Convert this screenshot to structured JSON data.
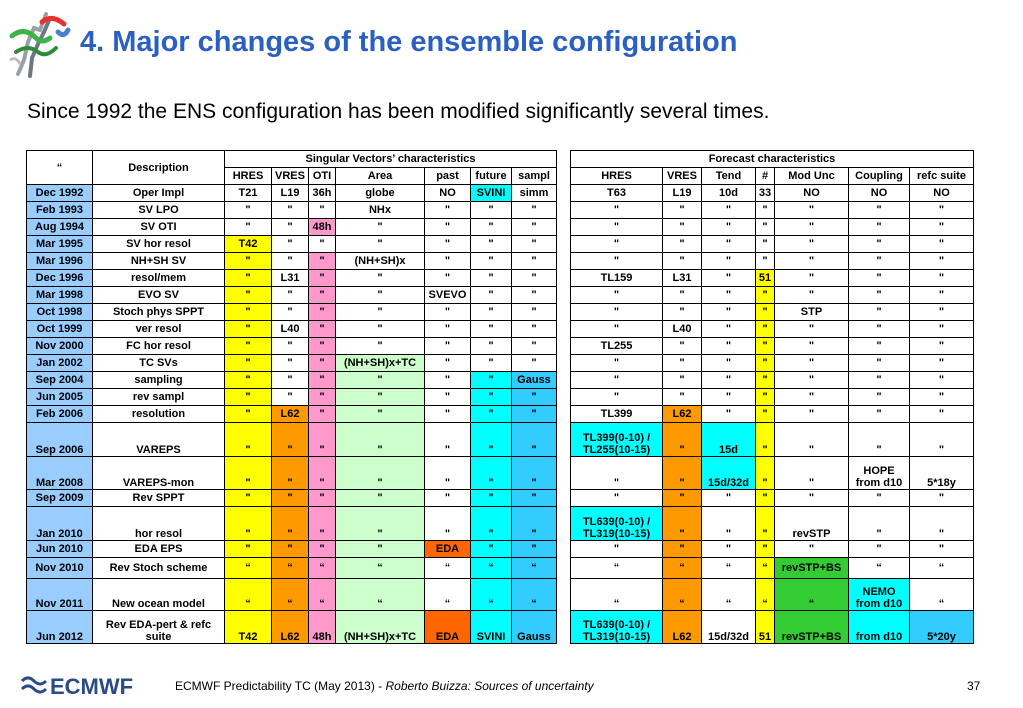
{
  "slide": {
    "title": "4. Major changes of the ensemble configuration",
    "subtitle": "Since 1992 the ENS configuration has been modified significantly several times.",
    "page_number": "37"
  },
  "footer": {
    "prefix": "ECMWF Predictability TC (May 2013) - ",
    "italic": "Roberto Buizza: Sources of uncertainty",
    "logo_text": "ECMWF"
  },
  "colors": {
    "title": "#2a5fc4",
    "header_blue": "#99ccff",
    "yellow": "#ffff00",
    "orange": "#ff9900",
    "dark_orange": "#ff6600",
    "pink": "#ff99cc",
    "light_green": "#ccffcc",
    "cyan": "#00ffff",
    "sky": "#33ccff",
    "green": "#33cc33"
  },
  "table": {
    "head": {
      "c1": "“",
      "c2": "Description",
      "sv_group": "Singular Vectors’ characteristics",
      "fc_group": "Forecast characteristics",
      "sv_cols": [
        "HRES",
        "VRES",
        "OTI",
        "Area",
        "past",
        "future",
        "sampl"
      ],
      "fc_cols": [
        "HRES",
        "VRES",
        "Tend",
        "#",
        "Mod Unc",
        "Coupling",
        "refc suite"
      ]
    },
    "rows": [
      {
        "date": "Dec 1992",
        "desc": "Oper Impl",
        "sv": [
          "T21",
          "L19",
          "36h",
          "globe",
          "NO",
          "SVINI",
          "simm"
        ],
        "fc": [
          "T63",
          "L19",
          "10d",
          "33",
          "NO",
          "NO",
          "NO"
        ]
      },
      {
        "date": "Feb 1993",
        "desc": "SV LPO",
        "sv": [
          "\"",
          "\"",
          "\"",
          "NHx",
          "\"",
          "\"",
          "\""
        ],
        "fc": [
          "\"",
          "\"",
          "\"",
          "\"",
          "\"",
          "\"",
          "\""
        ]
      },
      {
        "date": "Aug 1994",
        "desc": "SV OTI",
        "sv": [
          "\"",
          "\"",
          "48h",
          "\"",
          "\"",
          "\"",
          "\""
        ],
        "fc": [
          "\"",
          "\"",
          "\"",
          "\"",
          "\"",
          "\"",
          "\""
        ]
      },
      {
        "date": "Mar 1995",
        "desc": "SV hor resol",
        "sv": [
          "T42",
          "\"",
          "\"",
          "\"",
          "\"",
          "\"",
          "\""
        ],
        "fc": [
          "\"",
          "\"",
          "\"",
          "\"",
          "\"",
          "\"",
          "\""
        ]
      },
      {
        "date": "Mar 1996",
        "desc": "NH+SH SV",
        "sv": [
          "\"",
          "\"",
          "\"",
          "(NH+SH)x",
          "\"",
          "\"",
          "\""
        ],
        "fc": [
          "\"",
          "\"",
          "\"",
          "\"",
          "\"",
          "\"",
          "\""
        ]
      },
      {
        "date": "Dec 1996",
        "desc": "resol/mem",
        "sv": [
          "\"",
          "L31",
          "\"",
          "\"",
          "\"",
          "\"",
          "\""
        ],
        "fc": [
          "TL159",
          "L31",
          "\"",
          "51",
          "\"",
          "\"",
          "\""
        ]
      },
      {
        "date": "Mar 1998",
        "desc": "EVO SV",
        "sv": [
          "\"",
          "\"",
          "\"",
          "\"",
          "SVEVO",
          "\"",
          "\""
        ],
        "fc": [
          "\"",
          "\"",
          "\"",
          "\"",
          "\"",
          "\"",
          "\""
        ]
      },
      {
        "date": "Oct 1998",
        "desc": "Stoch phys SPPT",
        "sv": [
          "\"",
          "\"",
          "\"",
          "\"",
          "\"",
          "\"",
          "\""
        ],
        "fc": [
          "\"",
          "\"",
          "\"",
          "\"",
          "STP",
          "\"",
          "\""
        ]
      },
      {
        "date": "Oct 1999",
        "desc": "ver resol",
        "sv": [
          "\"",
          "L40",
          "\"",
          "\"",
          "\"",
          "\"",
          "\""
        ],
        "fc": [
          "\"",
          "L40",
          "\"",
          "\"",
          "\"",
          "\"",
          "\""
        ]
      },
      {
        "date": "Nov 2000",
        "desc": "FC hor resol",
        "sv": [
          "\"",
          "\"",
          "\"",
          "\"",
          "\"",
          "\"",
          "\""
        ],
        "fc": [
          "TL255",
          "\"",
          "\"",
          "\"",
          "\"",
          "\"",
          "\""
        ]
      },
      {
        "date": "Jan 2002",
        "desc": "TC SVs",
        "sv": [
          "\"",
          "\"",
          "\"",
          "(NH+SH)x+TC",
          "\"",
          "\"",
          "\""
        ],
        "fc": [
          "\"",
          "\"",
          "\"",
          "\"",
          "\"",
          "\"",
          "\""
        ]
      },
      {
        "date": "Sep 2004",
        "desc": "sampling",
        "sv": [
          "\"",
          "\"",
          "\"",
          "\"",
          "\"",
          "\"",
          "Gauss"
        ],
        "fc": [
          "\"",
          "\"",
          "\"",
          "\"",
          "\"",
          "\"",
          "\""
        ]
      },
      {
        "date": "Jun 2005",
        "desc": "rev sampl",
        "sv": [
          "\"",
          "\"",
          "\"",
          "\"",
          "\"",
          "\"",
          "\""
        ],
        "fc": [
          "\"",
          "\"",
          "\"",
          "\"",
          "\"",
          "\"",
          "\""
        ]
      },
      {
        "date": "Feb 2006",
        "desc": "resolution",
        "sv": [
          "\"",
          "L62",
          "\"",
          "\"",
          "\"",
          "\"",
          "\""
        ],
        "fc": [
          "TL399",
          "L62",
          "\"",
          "\"",
          "\"",
          "\"",
          "\""
        ]
      },
      {
        "date": "Sep 2006",
        "desc": "VAREPS",
        "sv": [
          "\"",
          "\"",
          "\"",
          "\"",
          "\"",
          "\"",
          "\""
        ],
        "fc": [
          "TL399(0-10) / TL255(10-15)",
          "\"",
          "15d",
          "\"",
          "\"",
          "\"",
          "\""
        ]
      },
      {
        "date": "Mar 2008",
        "desc": "VAREPS-mon",
        "sv": [
          "\"",
          "\"",
          "\"",
          "\"",
          "\"",
          "\"",
          "\""
        ],
        "fc": [
          "\"",
          "\"",
          "15d/32d",
          "\"",
          "\"",
          "HOPE from d10",
          "5*18y"
        ]
      },
      {
        "date": "Sep 2009",
        "desc": "Rev SPPT",
        "sv": [
          "\"",
          "\"",
          "\"",
          "\"",
          "\"",
          "\"",
          "\""
        ],
        "fc": [
          "\"",
          "\"",
          "\"",
          "\"",
          "\"",
          "\"",
          "\""
        ]
      },
      {
        "date": "Jan 2010",
        "desc": "hor resol",
        "sv": [
          "\"",
          "\"",
          "\"",
          "\"",
          "\"",
          "\"",
          "\""
        ],
        "fc": [
          "TL639(0-10) / TL319(10-15)",
          "\"",
          "\"",
          "\"",
          "revSTP",
          "\"",
          "\""
        ]
      },
      {
        "date": "Jun 2010",
        "desc": "EDA EPS",
        "sv": [
          "\"",
          "\"",
          "\"",
          "\"",
          "EDA",
          "\"",
          "\""
        ],
        "fc": [
          "\"",
          "\"",
          "\"",
          "\"",
          "\"",
          "\"",
          "\""
        ]
      },
      {
        "date": "Nov 2010",
        "desc": "Rev Stoch scheme",
        "sv": [
          "“",
          "“",
          "“",
          "“",
          "“",
          "“",
          "“"
        ],
        "fc": [
          "“",
          "“",
          "“",
          "“",
          "revSTP+BS",
          "“",
          "“"
        ]
      },
      {
        "date": "Nov 2011",
        "desc": "New ocean model",
        "sv": [
          "“",
          "“",
          "“",
          "“",
          "“",
          "“",
          "“"
        ],
        "fc": [
          "“",
          "“",
          "“",
          "“",
          "“",
          "NEMO from d10",
          "“"
        ]
      },
      {
        "date": "Jun 2012",
        "desc": "Rev EDA-pert & refc suite",
        "sv": [
          "T42",
          "L62",
          "48h",
          "(NH+SH)x+TC",
          "EDA",
          "SVINI",
          "Gauss"
        ],
        "fc": [
          "TL639(0-10) / TL319(10-15)",
          "L62",
          "15d/32d",
          "51",
          "revSTP+BS",
          "from d10",
          "5*20y"
        ]
      }
    ]
  }
}
